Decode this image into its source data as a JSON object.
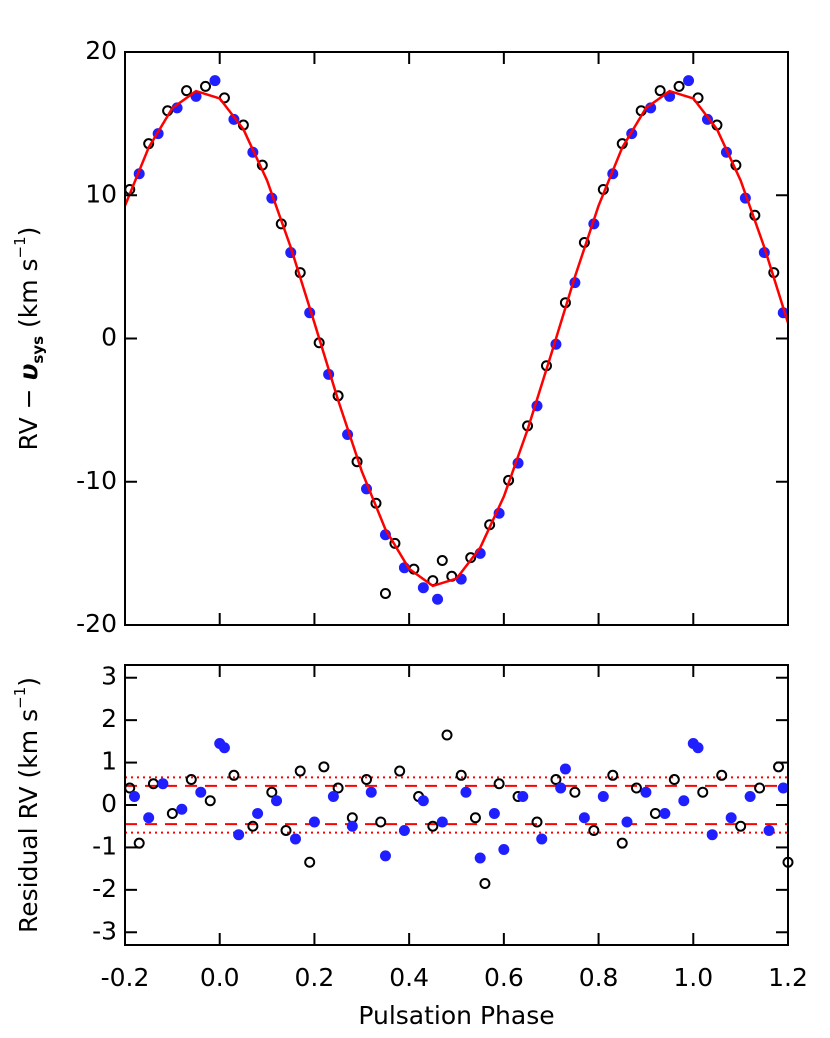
{
  "chart_data": [
    {
      "type": "scatter",
      "y_label": {
        "pre": "RV − ",
        "sym": "υ",
        "sub": "sys",
        "unit": " (km s",
        "sup": "−1",
        "post": ")"
      },
      "xlim": [
        -0.2,
        1.2
      ],
      "ylim": [
        -20,
        20
      ],
      "xticks": [
        -0.2,
        0,
        0.2,
        0.4,
        0.6,
        0.8,
        1,
        1.2
      ],
      "show_xtick_labels": false,
      "yticks": [
        -20,
        -10,
        0,
        10,
        20
      ],
      "series": [
        {
          "kind": "open",
          "color": "#000000",
          "x": [
            -0.19,
            -0.15,
            -0.11,
            -0.07,
            -0.03,
            0.01,
            0.05,
            0.09,
            0.13,
            0.17,
            0.21,
            0.25,
            0.29,
            0.33,
            0.35,
            0.37,
            0.41,
            0.45,
            0.47,
            0.49,
            0.53,
            0.57,
            0.61,
            0.65,
            0.69,
            0.73,
            0.77,
            0.81,
            0.85,
            0.89,
            0.93,
            0.97,
            1.01,
            1.05,
            1.09,
            1.13,
            1.17
          ],
          "values": [
            10.4,
            13.6,
            15.9,
            17.3,
            17.6,
            16.8,
            14.9,
            12.1,
            8.0,
            4.6,
            -0.3,
            -4.0,
            -8.6,
            -11.5,
            -17.8,
            -14.3,
            -16.1,
            -16.9,
            -15.5,
            -16.6,
            -15.3,
            -13.0,
            -9.9,
            -6.1,
            -1.9,
            2.5,
            6.7,
            10.4,
            13.6,
            15.9,
            17.3,
            17.6,
            16.8,
            14.9,
            12.1,
            8.6,
            4.6
          ]
        },
        {
          "kind": "filled",
          "color": "#1f1fff",
          "x": [
            -0.17,
            -0.13,
            -0.09,
            -0.05,
            -0.01,
            0.03,
            0.07,
            0.11,
            0.15,
            0.19,
            0.23,
            0.27,
            0.31,
            0.35,
            0.39,
            0.43,
            0.46,
            0.51,
            0.55,
            0.59,
            0.63,
            0.67,
            0.71,
            0.75,
            0.79,
            0.83,
            0.87,
            0.91,
            0.95,
            0.99,
            1.03,
            1.07,
            1.11,
            1.15,
            1.19
          ],
          "values": [
            11.5,
            14.3,
            16.1,
            16.9,
            18.0,
            15.3,
            13.0,
            9.8,
            6.0,
            1.8,
            -2.5,
            -6.7,
            -10.5,
            -13.7,
            -16.0,
            -17.4,
            -18.2,
            -16.8,
            -15.0,
            -12.2,
            -8.7,
            -4.7,
            -0.4,
            3.9,
            8.0,
            11.5,
            14.3,
            16.1,
            16.9,
            18.0,
            15.3,
            13.0,
            9.8,
            6.0,
            1.8
          ]
        },
        {
          "kind": "line",
          "color": "#ff0000",
          "x": [
            -0.2,
            -0.15,
            -0.1,
            -0.05,
            0,
            0.05,
            0.1,
            0.15,
            0.2,
            0.25,
            0.3,
            0.35,
            0.4,
            0.45,
            0.5,
            0.55,
            0.6,
            0.65,
            0.7,
            0.75,
            0.8,
            0.85,
            0.9,
            0.95,
            1,
            1.05,
            1.1,
            1.15,
            1.2
          ],
          "values": [
            9.27,
            13.33,
            16.08,
            17.27,
            16.76,
            14.61,
            11.03,
            6.37,
            1.09,
            -4.3,
            -9.27,
            -13.33,
            -16.08,
            -17.27,
            -16.76,
            -14.61,
            -11.03,
            -6.37,
            -1.09,
            4.3,
            9.27,
            13.33,
            16.08,
            17.27,
            16.76,
            14.61,
            11.03,
            6.37,
            1.09
          ]
        }
      ]
    },
    {
      "type": "scatter",
      "x_label": "Pulsation Phase",
      "y_label": {
        "pre": "Residual RV",
        "unit": " (km s",
        "sup": "−1",
        "post": ")"
      },
      "xlim": [
        -0.2,
        1.2
      ],
      "ylim": [
        -3.3,
        3.3
      ],
      "xticks": [
        -0.2,
        {
          "value": 0,
          "label": "0.0"
        },
        0.2,
        0.4,
        0.6,
        0.8,
        {
          "value": 1,
          "label": "1.0"
        },
        1.2
      ],
      "show_xtick_labels": true,
      "yticks": [
        -3,
        -2,
        -1,
        0,
        1,
        2,
        3
      ],
      "hlines": [
        {
          "value": 0.65,
          "style": "dotted",
          "color": "#ff0000"
        },
        {
          "value": -0.65,
          "style": "dotted",
          "color": "#ff0000"
        },
        {
          "value": 0.45,
          "style": "dashed",
          "color": "#ff0000"
        },
        {
          "value": -0.45,
          "style": "dashed",
          "color": "#ff0000"
        }
      ],
      "series": [
        {
          "kind": "open",
          "color": "#000000",
          "x": [
            -0.19,
            -0.17,
            -0.14,
            -0.1,
            -0.06,
            -0.02,
            0.03,
            0.07,
            0.11,
            0.14,
            0.17,
            0.19,
            0.22,
            0.25,
            0.28,
            0.31,
            0.34,
            0.38,
            0.42,
            0.45,
            0.48,
            0.51,
            0.54,
            0.56,
            0.59,
            0.63,
            0.67,
            0.71,
            0.75,
            0.79,
            0.83,
            0.85,
            0.88,
            0.92,
            0.96,
            1.02,
            1.06,
            1.1,
            1.14,
            1.18,
            1.2
          ],
          "values": [
            0.4,
            -0.9,
            0.5,
            -0.2,
            0.6,
            0.1,
            0.7,
            -0.5,
            0.3,
            -0.6,
            0.8,
            -1.35,
            0.9,
            0.4,
            -0.3,
            0.6,
            -0.4,
            0.8,
            0.2,
            -0.5,
            1.65,
            0.7,
            -0.3,
            -1.85,
            0.5,
            0.2,
            -0.4,
            0.6,
            0.3,
            -0.6,
            0.7,
            -0.9,
            0.4,
            -0.2,
            0.6,
            0.3,
            0.7,
            -0.5,
            0.4,
            0.9,
            -1.35
          ]
        },
        {
          "kind": "filled",
          "color": "#1f1fff",
          "x": [
            -0.18,
            -0.15,
            -0.12,
            -0.08,
            -0.04,
            0.0,
            0.01,
            0.04,
            0.08,
            0.12,
            0.16,
            0.2,
            0.24,
            0.28,
            0.32,
            0.35,
            0.39,
            0.43,
            0.47,
            0.52,
            0.55,
            0.58,
            0.6,
            0.64,
            0.68,
            0.72,
            0.73,
            0.77,
            0.81,
            0.86,
            0.9,
            0.94,
            0.98,
            1.0,
            1.01,
            1.04,
            1.08,
            1.12,
            1.16,
            1.19
          ],
          "values": [
            0.2,
            -0.3,
            0.5,
            -0.1,
            0.3,
            1.45,
            1.35,
            -0.7,
            -0.2,
            0.1,
            -0.8,
            -0.4,
            0.2,
            -0.5,
            0.3,
            -1.2,
            -0.6,
            0.1,
            -0.4,
            0.3,
            -1.25,
            -0.2,
            -1.05,
            0.2,
            -0.8,
            0.4,
            0.85,
            -0.3,
            0.2,
            -0.4,
            0.3,
            -0.2,
            0.1,
            1.45,
            1.35,
            -0.7,
            -0.3,
            0.2,
            -0.6,
            0.4
          ]
        }
      ]
    }
  ]
}
